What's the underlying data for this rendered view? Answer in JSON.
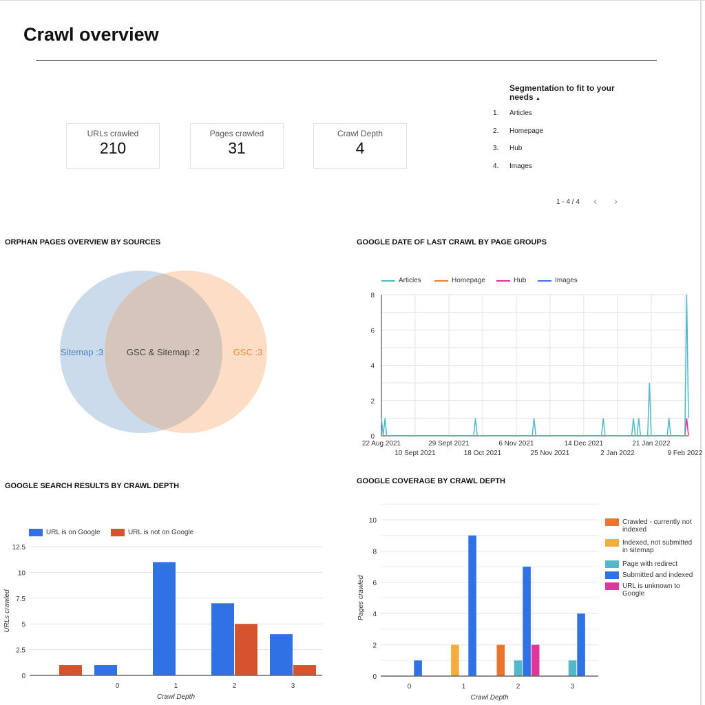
{
  "header": {
    "title": "Crawl overview"
  },
  "kpis": [
    {
      "label": "URLs crawled",
      "value": "210"
    },
    {
      "label": "Pages crawled",
      "value": "31"
    },
    {
      "label": "Crawl Depth",
      "value": "4"
    }
  ],
  "segmentation": {
    "title": "Segmentation to fit to your needs",
    "sort_icon": "sort-asc-icon",
    "rows": [
      {
        "n": "1.",
        "label": "Articles"
      },
      {
        "n": "2.",
        "label": "Homepage"
      },
      {
        "n": "3.",
        "label": "Hub"
      },
      {
        "n": "4.",
        "label": "Images"
      }
    ],
    "pager": "1 - 4 / 4",
    "prev": "‹",
    "next": "›"
  },
  "sections": {
    "orphan": "ORPHAN PAGES OVERVIEW BY SOURCES",
    "lastcrawl": "GOOGLE DATE OF LAST CRAWL BY PAGE GROUPS",
    "search": "GOOGLE SEARCH RESULTS BY CRAWL DEPTH",
    "coverage": "GOOGLE COVERAGE BY CRAWL DEPTH"
  },
  "chart_data": [
    {
      "type": "venn",
      "sets": [
        {
          "name": "Sitemap",
          "value": 3,
          "label": "Sitemap :3",
          "color": "#c9d9ea"
        },
        {
          "name": "GSC",
          "value": 3,
          "label": "GSC :3",
          "color": "#fbdcc2"
        }
      ],
      "intersection": {
        "value": 2,
        "label": "GSC & Sitemap :2"
      }
    },
    {
      "type": "line",
      "x_range": [
        "2021-08-22",
        "2022-02-11"
      ],
      "xticks": [
        "22 Aug 2021",
        "10 Sept 2021",
        "29 Sept 2021",
        "18 Oct 2021",
        "6 Nov 2021",
        "25 Nov 2021",
        "14 Dec 2021",
        "2 Jan 2022",
        "21 Jan 2022",
        "9 Feb 2022"
      ],
      "ylim": [
        0,
        8
      ],
      "yticks": [
        0,
        2,
        4,
        6,
        8
      ],
      "grid": true,
      "legend": "top-left",
      "series": [
        {
          "name": "Articles",
          "color": "#4fb9c8",
          "points": [
            [
              "2021-08-22",
              1
            ],
            [
              "2021-08-24",
              1
            ],
            [
              "2021-10-14",
              1
            ],
            [
              "2021-11-16",
              1
            ],
            [
              "2021-12-25",
              1
            ],
            [
              "2022-01-11",
              1
            ],
            [
              "2022-01-14",
              1
            ],
            [
              "2022-01-20",
              3
            ],
            [
              "2022-01-31",
              1
            ],
            [
              "2022-02-10",
              8
            ],
            [
              "2022-02-11",
              1
            ]
          ]
        },
        {
          "name": "Homepage",
          "color": "#f07b30",
          "points": []
        },
        {
          "name": "Hub",
          "color": "#e0309a",
          "points": [
            [
              "2022-02-10",
              1
            ]
          ]
        },
        {
          "name": "Images",
          "color": "#3b6ee0",
          "points": []
        }
      ]
    },
    {
      "type": "bar",
      "categories": [
        "",
        "0",
        "1",
        "2",
        "3"
      ],
      "xlabel": "Crawl Depth",
      "ylabel": "URLs crawled",
      "ylim": [
        0,
        12.5
      ],
      "yticks": [
        "0",
        "2.5",
        "5",
        "7.5",
        "10",
        "12.5"
      ],
      "legend": "top-left",
      "series": [
        {
          "name": "URL is on Google",
          "color": "#3072e6",
          "values": [
            0,
            1,
            11,
            7,
            4
          ]
        },
        {
          "name": "URL is not on Google",
          "color": "#d55430",
          "values": [
            1,
            0,
            0,
            5,
            1
          ]
        }
      ]
    },
    {
      "type": "bar",
      "categories": [
        "0",
        "1",
        "2",
        "3"
      ],
      "xlabel": "Crawl Depth",
      "ylabel": "Pages crawled",
      "ylim": [
        0,
        10
      ],
      "yticks": [
        "0",
        "2",
        "4",
        "6",
        "8",
        "10"
      ],
      "legend": "right",
      "series": [
        {
          "name": "Crawled - currently not indexed",
          "color": "#e8752f",
          "values": [
            0,
            0,
            2,
            0
          ]
        },
        {
          "name": "Indexed, not submitted in sitemap",
          "color": "#f4ac3b",
          "values": [
            0,
            2,
            0,
            0
          ]
        },
        {
          "name": "Page with redirect",
          "color": "#54b8c8",
          "values": [
            0,
            0,
            1,
            1
          ]
        },
        {
          "name": "Submitted and indexed",
          "color": "#3072e6",
          "values": [
            1,
            9,
            7,
            4
          ]
        },
        {
          "name": "URL is unknown to Google",
          "color": "#e0359a",
          "values": [
            0,
            0,
            2,
            0
          ]
        }
      ]
    }
  ]
}
